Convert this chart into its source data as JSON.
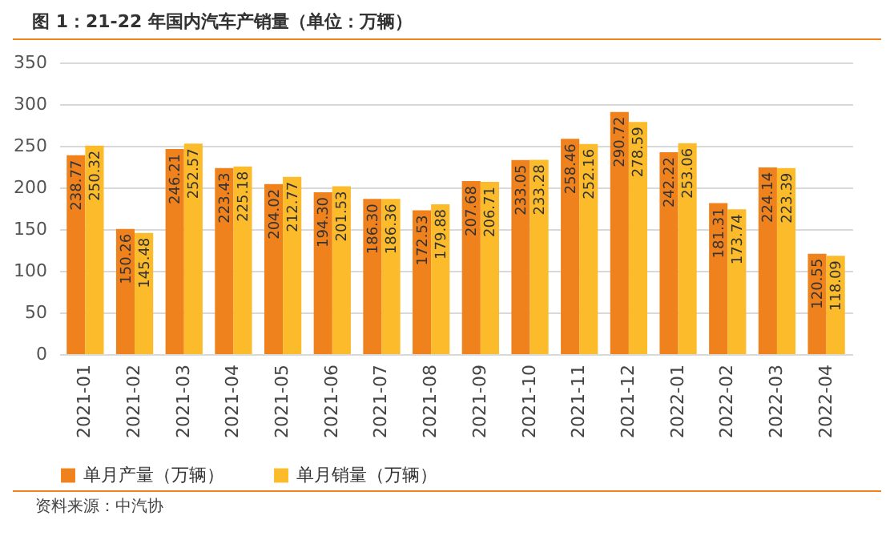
{
  "chart_data": {
    "type": "bar",
    "title": "图 1：21-22 年国内汽车产销量（单位：万辆）",
    "categories": [
      "2021-01",
      "2021-02",
      "2021-03",
      "2021-04",
      "2021-05",
      "2021-06",
      "2021-07",
      "2021-08",
      "2021-09",
      "2021-10",
      "2021-11",
      "2021-12",
      "2022-01",
      "2022-02",
      "2022-03",
      "2022-04"
    ],
    "series": [
      {
        "name": "单月产量（万辆）",
        "color": "#f0821e",
        "values": [
          238.77,
          150.26,
          246.21,
          223.43,
          204.02,
          194.3,
          186.3,
          172.53,
          207.68,
          233.05,
          258.46,
          290.72,
          242.22,
          181.31,
          224.14,
          120.55
        ],
        "value_labels": [
          "238.77",
          "150.26",
          "246.21",
          "223.43",
          "204.02",
          "194.30",
          "186.30",
          "172.53",
          "207.68",
          "233.05",
          "258.46",
          "290.72",
          "242.22",
          "181.31",
          "224.14",
          "120.55"
        ]
      },
      {
        "name": "单月销量（万辆）",
        "color": "#fbbb2a",
        "values": [
          250.32,
          145.48,
          252.57,
          225.18,
          212.77,
          201.53,
          186.36,
          179.88,
          206.71,
          233.28,
          252.16,
          278.59,
          253.06,
          173.74,
          223.39,
          118.09
        ],
        "value_labels": [
          "250.32",
          "145.48",
          "252.57",
          "225.18",
          "212.77",
          "201.53",
          "186.36",
          "179.88",
          "206.71",
          "233.28",
          "252.16",
          "278.59",
          "253.06",
          "173.74",
          "223.39",
          "118.09"
        ]
      }
    ],
    "ylim": [
      0,
      350
    ],
    "yticks": [
      0,
      50,
      100,
      150,
      200,
      250,
      300,
      350
    ],
    "grid": "y",
    "legend": "bottom",
    "annotations": [
      "资料来源：中汽协"
    ]
  }
}
